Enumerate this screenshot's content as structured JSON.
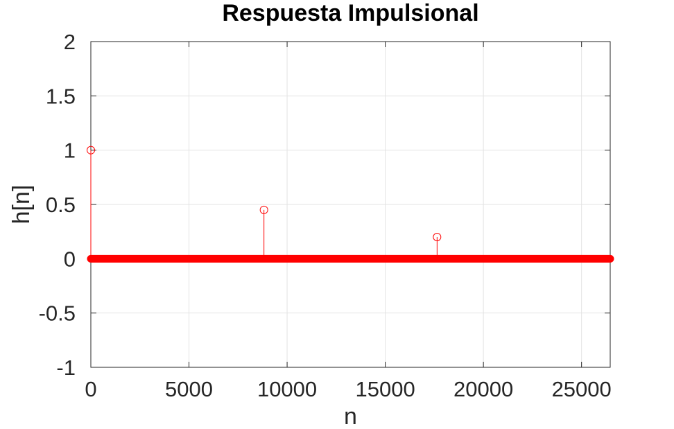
{
  "chart_data": {
    "type": "stem",
    "title": "Respuesta Impulsional",
    "xlabel": "n",
    "ylabel": "h[n]",
    "xlim": [
      0,
      26460
    ],
    "ylim": [
      -1,
      2
    ],
    "xticks": [
      0,
      5000,
      10000,
      15000,
      20000,
      25000
    ],
    "yticks": [
      -1,
      -0.5,
      0,
      0.5,
      1,
      1.5,
      2
    ],
    "xtick_labels": [
      "0",
      "5000",
      "10000",
      "15000",
      "20000",
      "25000"
    ],
    "ytick_labels": [
      "-1",
      "-0.5",
      "0",
      "0.5",
      "1",
      "1.5",
      "2"
    ],
    "grid": true,
    "series": [
      {
        "color": "#ff0000",
        "marker": "circle",
        "baseline_value": 0,
        "baseline_range": [
          0,
          26460
        ],
        "impulses": [
          {
            "x": 0,
            "y": 1
          },
          {
            "x": 8820,
            "y": 0.45
          },
          {
            "x": 17640,
            "y": 0.2
          }
        ]
      }
    ]
  }
}
